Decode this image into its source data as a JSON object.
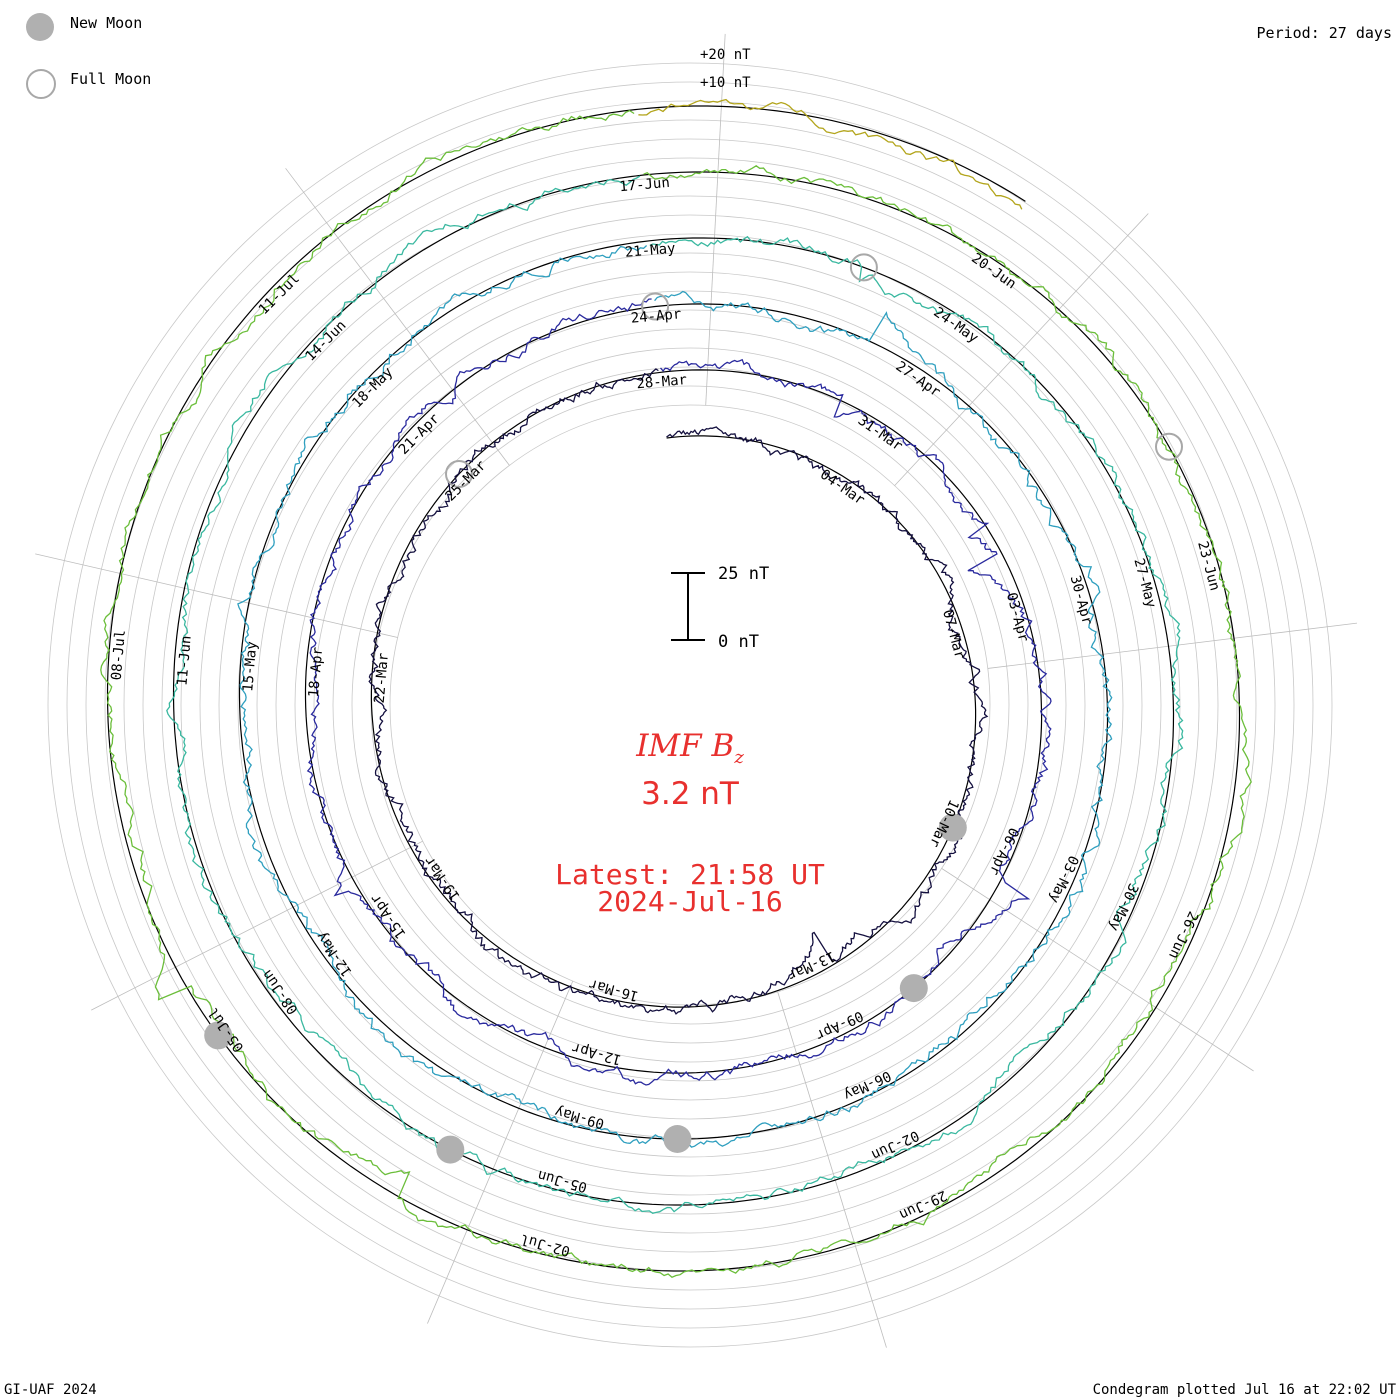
{
  "legend": {
    "new_moon_label": "New Moon",
    "full_moon_label": "Full Moon",
    "new_moon_color": "#b0b0b0",
    "full_moon_stroke": "#a8a8a8"
  },
  "period_label": "Period: 27 days",
  "footer_left": "GI-UAF 2024",
  "footer_right": "Condegram plotted Jul 16 at 22:02 UT",
  "center": {
    "parameter_label": "IMF B",
    "parameter_subscript": "z",
    "current_value": "3.2 nT",
    "latest_label": "Latest: 21:58 UT",
    "latest_date": "2024-Jul-16",
    "color": "#e8302e"
  },
  "scale_bar": {
    "top_label": "25 nT",
    "bottom_label": "0 nT"
  },
  "ring_scale": {
    "top_label": "+20 nT",
    "mid_label": "+10 nT"
  },
  "chart_data": {
    "type": "line",
    "projection": "polar condegram (spiral)",
    "period_days": 27,
    "units": "nT",
    "date_range": [
      "2024-Mar-01",
      "2024-Jul-16"
    ],
    "date_labels": [
      "04-Mar",
      "07-Mar",
      "10-Mar",
      "13-Mar",
      "16-Mar",
      "19-Mar",
      "22-Mar",
      "25-Mar",
      "28-Mar",
      "31-Mar",
      "03-Apr",
      "06-Apr",
      "09-Apr",
      "12-Apr",
      "15-Apr",
      "18-Apr",
      "21-Apr",
      "24-Apr",
      "27-Apr",
      "30-Apr",
      "03-May",
      "06-May",
      "09-May",
      "12-May",
      "15-May",
      "18-May",
      "21-May",
      "24-May",
      "27-May",
      "30-May",
      "02-Jun",
      "05-Jun",
      "08-Jun",
      "11-Jun",
      "14-Jun",
      "17-Jun",
      "20-Jun",
      "23-Jun",
      "26-Jun",
      "29-Jun",
      "02-Jul",
      "05-Jul",
      "08-Jul",
      "11-Jul"
    ],
    "new_moon_dates": [
      "2024-Mar-10",
      "2024-Apr-08",
      "2024-May-08",
      "2024-Jun-06",
      "2024-Jul-05"
    ],
    "full_moon_dates": [
      "2024-Mar-25",
      "2024-Apr-24",
      "2024-May-23",
      "2024-Jun-22"
    ],
    "series_colors": [
      "#14103f",
      "#2a2a9e",
      "#2f9fbf",
      "#3ab8a0",
      "#6bbe3a",
      "#b3a51c",
      "#c98a10",
      "#b01b10"
    ],
    "latest_value": 3.2
  }
}
